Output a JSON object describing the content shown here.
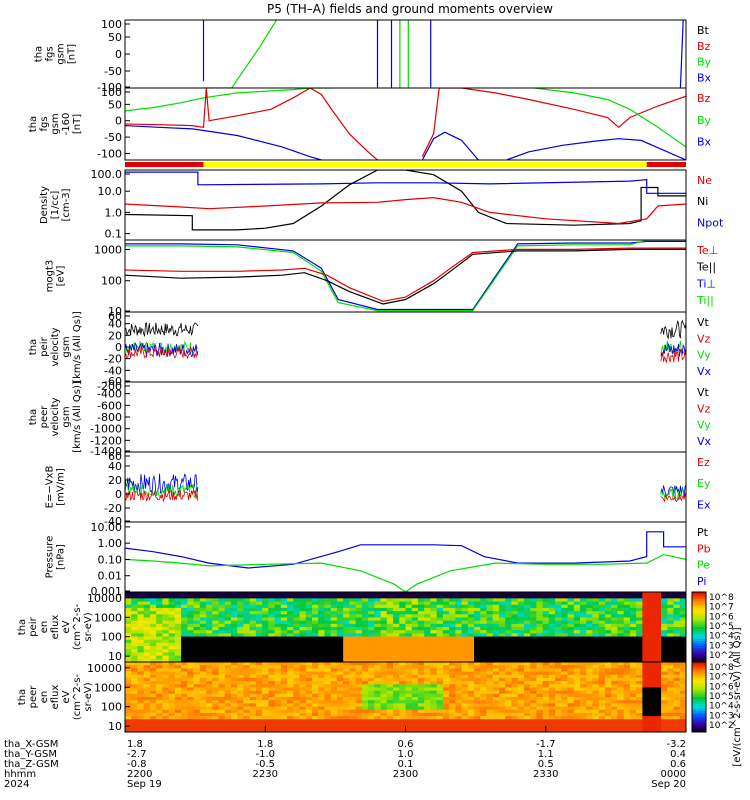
{
  "title": "P5 (TH–A) fields and ground moments overview",
  "colors": {
    "black": "#000000",
    "red": "#e00000",
    "green": "#00dd00",
    "blue": "#0000e0",
    "yellow": "#ffff00",
    "panel_bg": "#ffffff"
  },
  "chart_data": [
    {
      "type": "line",
      "ylabel_lines": [
        "tha",
        "fgs",
        "gsm",
        "[nT]"
      ],
      "ylim": [
        -100,
        100
      ],
      "yticks": [
        "100",
        "50",
        "0",
        "-50",
        "-100"
      ],
      "log": false,
      "legend": [
        {
          "text": "Bt",
          "color": "#000000"
        },
        {
          "text": "Bz",
          "color": "#e00000"
        },
        {
          "text": "By",
          "color": "#00dd00"
        },
        {
          "text": "Bx",
          "color": "#0000e0"
        }
      ],
      "series": [
        {
          "color": "#0000e0",
          "x": [
            0.14,
            0.14,
            0.14
          ],
          "y": [
            100,
            5,
            -80
          ]
        },
        {
          "color": "#00dd00",
          "x": [
            0.14,
            0.19,
            0.24,
            0.27
          ],
          "y": [
            -100,
            -100,
            20,
            100
          ]
        },
        {
          "color": "#0000e0",
          "x": [
            0.45,
            0.45
          ],
          "y": [
            100,
            -100
          ]
        },
        {
          "color": "#0000e0",
          "x": [
            0.475,
            0.475
          ],
          "y": [
            100,
            -100
          ]
        },
        {
          "color": "#00dd00",
          "x": [
            0.49,
            0.49
          ],
          "y": [
            100,
            -100
          ]
        },
        {
          "color": "#00dd00",
          "x": [
            0.505,
            0.505
          ],
          "y": [
            100,
            -100
          ]
        },
        {
          "color": "#0000e0",
          "x": [
            0.545,
            0.545
          ],
          "y": [
            100,
            -100
          ]
        },
        {
          "color": "#0000e0",
          "x": [
            0.99,
            0.995
          ],
          "y": [
            -100,
            100
          ]
        }
      ]
    },
    {
      "type": "line",
      "ylabel_lines": [
        "tha",
        "fgs",
        "gsm",
        "-160",
        "[nT]"
      ],
      "ylim": [
        -120,
        100
      ],
      "yticks": [
        "100",
        "50",
        "0",
        "-50",
        "-100"
      ],
      "log": false,
      "legend": [
        {
          "text": "Bz",
          "color": "#e00000"
        },
        {
          "text": "By",
          "color": "#00dd00"
        },
        {
          "text": "Bx",
          "color": "#0000e0"
        }
      ],
      "series": [
        {
          "color": "#00dd00",
          "x": [
            0,
            0.05,
            0.1,
            0.14,
            0.2,
            0.3,
            0.33,
            0.37
          ],
          "y": [
            30,
            40,
            55,
            70,
            85,
            95,
            100,
            100
          ]
        },
        {
          "color": "#e00000",
          "x": [
            0,
            0.06,
            0.12,
            0.14,
            0.145,
            0.15,
            0.2,
            0.26,
            0.3,
            0.33,
            0.35,
            0.37,
            0.4,
            0.43,
            0.45
          ],
          "y": [
            -10,
            -12,
            -15,
            -20,
            100,
            0,
            15,
            35,
            70,
            100,
            80,
            30,
            -40,
            -90,
            -120
          ]
        },
        {
          "color": "#0000e0",
          "x": [
            0,
            0.06,
            0.12,
            0.14,
            0.2,
            0.28,
            0.33,
            0.35
          ],
          "y": [
            -15,
            -20,
            -25,
            -30,
            -45,
            -80,
            -110,
            -120
          ]
        },
        {
          "color": "#e00000",
          "x": [
            0.53,
            0.55,
            0.56,
            0.6,
            0.66,
            0.72,
            0.8,
            0.86,
            0.88,
            0.9,
            0.95,
            1.0
          ],
          "y": [
            -110,
            -40,
            100,
            100,
            85,
            65,
            35,
            10,
            -20,
            10,
            45,
            75
          ]
        },
        {
          "color": "#0000e0",
          "x": [
            0.53,
            0.55,
            0.57,
            0.6,
            0.63
          ],
          "y": [
            -120,
            -55,
            -35,
            -60,
            -120
          ]
        },
        {
          "color": "#0000e0",
          "x": [
            0.68,
            0.72,
            0.78,
            0.84,
            0.88,
            0.92,
            0.96,
            1.0
          ],
          "y": [
            -120,
            -95,
            -75,
            -62,
            -55,
            -60,
            -90,
            -120
          ]
        },
        {
          "color": "#00dd00",
          "x": [
            0.73,
            0.8,
            0.86,
            0.9,
            0.95,
            1.0
          ],
          "y": [
            100,
            85,
            65,
            35,
            -20,
            -80
          ]
        }
      ],
      "status_bar": [
        {
          "from": 0,
          "to": 0.14,
          "color": "#e00000"
        },
        {
          "from": 0.14,
          "to": 0.93,
          "color": "#ffff00"
        },
        {
          "from": 0.93,
          "to": 1.0,
          "color": "#e00000"
        }
      ]
    },
    {
      "type": "line",
      "ylabel_lines": [
        "Density",
        "[1/cc]",
        "[cm-3]"
      ],
      "ylim": [
        0.05,
        100
      ],
      "yticks": [
        "100.0",
        "10.0",
        "1.0",
        "0.1"
      ],
      "log": true,
      "legend": [
        {
          "text": "Ne",
          "color": "#e00000"
        },
        {
          "text": "Ni",
          "color": "#000000"
        },
        {
          "text": "Npot",
          "color": "#0000e0"
        }
      ],
      "series": [
        {
          "color": "#0000e0",
          "x": [
            0,
            0.12,
            0.13,
            0.13,
            0.35,
            0.45,
            0.55,
            0.65,
            0.9,
            0.93,
            0.93,
            1.0
          ],
          "y": [
            80,
            80,
            80,
            20,
            22,
            25,
            25,
            22,
            30,
            35,
            8,
            8
          ]
        },
        {
          "color": "#000000",
          "x": [
            0,
            0.12,
            0.12,
            0.2,
            0.25,
            0.3,
            0.35,
            0.4,
            0.45,
            0.5,
            0.55,
            0.6,
            0.63,
            0.68,
            0.8,
            0.9,
            0.92,
            0.92,
            0.95,
            0.95,
            1.0
          ],
          "y": [
            0.8,
            0.7,
            0.15,
            0.15,
            0.18,
            0.3,
            2,
            20,
            100,
            100,
            60,
            10,
            1,
            0.3,
            0.25,
            0.3,
            0.4,
            15,
            15,
            6,
            6
          ]
        },
        {
          "color": "#e00000",
          "x": [
            0,
            0.1,
            0.15,
            0.25,
            0.35,
            0.45,
            0.5,
            0.55,
            0.6,
            0.65,
            0.75,
            0.88,
            0.93,
            0.95,
            1.0
          ],
          "y": [
            2.5,
            1.8,
            1.5,
            2,
            2.8,
            3,
            4,
            5,
            3,
            1,
            0.5,
            0.3,
            0.5,
            2,
            2.5
          ]
        }
      ]
    },
    {
      "type": "line",
      "ylabel_lines": [
        "mogt3",
        "[eV]"
      ],
      "ylim": [
        10,
        2000
      ],
      "yticks": [
        "1000",
        "100",
        "10"
      ],
      "log": true,
      "legend": [
        {
          "text": "Te⊥",
          "color": "#e00000"
        },
        {
          "text": "Te||",
          "color": "#000000"
        },
        {
          "text": "Ti⊥",
          "color": "#0000e0"
        },
        {
          "text": "Ti||",
          "color": "#00dd00"
        }
      ],
      "series": [
        {
          "color": "#0000e0",
          "x": [
            0,
            0.1,
            0.2,
            0.3,
            0.35,
            0.38,
            0.45,
            0.55,
            0.58,
            0.6,
            0.62,
            0.7,
            0.8,
            0.9,
            0.93,
            1.0
          ],
          "y": [
            1500,
            1500,
            1400,
            900,
            250,
            25,
            12,
            12,
            12,
            12,
            12,
            1500,
            1600,
            1600,
            1800,
            1800
          ]
        },
        {
          "color": "#00dd00",
          "x": [
            0,
            0.1,
            0.2,
            0.3,
            0.35,
            0.38,
            0.45,
            0.55,
            0.6,
            0.62,
            0.7,
            0.8,
            0.9,
            0.93,
            1.0
          ],
          "y": [
            1300,
            1300,
            1200,
            800,
            200,
            20,
            11,
            11,
            11,
            11,
            1300,
            1400,
            1400,
            2000,
            2000
          ]
        },
        {
          "color": "#e00000",
          "x": [
            0,
            0.1,
            0.2,
            0.28,
            0.32,
            0.36,
            0.4,
            0.46,
            0.5,
            0.55,
            0.58,
            0.62,
            0.7,
            0.8,
            0.9,
            1.0
          ],
          "y": [
            220,
            200,
            200,
            220,
            250,
            150,
            60,
            22,
            30,
            100,
            250,
            800,
            1000,
            1000,
            1100,
            1100
          ]
        },
        {
          "color": "#000000",
          "x": [
            0,
            0.1,
            0.2,
            0.28,
            0.32,
            0.36,
            0.4,
            0.46,
            0.5,
            0.55,
            0.58,
            0.62,
            0.7,
            0.8,
            0.9,
            1.0
          ],
          "y": [
            150,
            120,
            130,
            150,
            180,
            100,
            45,
            18,
            25,
            80,
            200,
            700,
            900,
            900,
            1000,
            1000
          ]
        }
      ]
    },
    {
      "type": "line",
      "ylabel_lines": [
        "tha",
        "peir",
        "velocity",
        "gsm",
        "[km/s (All Qs)]"
      ],
      "ylim": [
        -60,
        60
      ],
      "yticks": [
        "60",
        "40",
        "20",
        "0",
        "-20",
        "-40",
        "-60"
      ],
      "log": false,
      "legend": [
        {
          "text": "Vt",
          "color": "#000000"
        },
        {
          "text": "Vz",
          "color": "#e00000"
        },
        {
          "text": "Vy",
          "color": "#00dd00"
        },
        {
          "text": "Vx",
          "color": "#0000e0"
        }
      ],
      "noise_series": [
        {
          "color": "#000000",
          "x_from": 0,
          "x_to": 0.13,
          "y": 30,
          "amp": 12
        },
        {
          "color": "#00dd00",
          "x_from": 0,
          "x_to": 0.13,
          "y": 0,
          "amp": 10
        },
        {
          "color": "#0000e0",
          "x_from": 0,
          "x_to": 0.13,
          "y": -5,
          "amp": 12
        },
        {
          "color": "#e00000",
          "x_from": 0,
          "x_to": 0.13,
          "y": -10,
          "amp": 10
        },
        {
          "color": "#000000",
          "x_from": 0.955,
          "x_to": 1.0,
          "y": 30,
          "amp": 15
        },
        {
          "color": "#00dd00",
          "x_from": 0.955,
          "x_to": 1.0,
          "y": 0,
          "amp": 12
        },
        {
          "color": "#0000e0",
          "x_from": 0.955,
          "x_to": 1.0,
          "y": -5,
          "amp": 14
        },
        {
          "color": "#e00000",
          "x_from": 0.955,
          "x_to": 1.0,
          "y": -15,
          "amp": 12
        }
      ]
    },
    {
      "type": "line",
      "ylabel_lines": [
        "tha",
        "peer",
        "velocity",
        "gsm",
        "[km/s (All Qs)]"
      ],
      "ylim": [
        -1400,
        -200
      ],
      "yticks": [
        "-200",
        "-400",
        "-600",
        "-800",
        "-1000",
        "-1200",
        "-1400"
      ],
      "log": false,
      "legend": [
        {
          "text": "Vt",
          "color": "#000000"
        },
        {
          "text": "Vz",
          "color": "#e00000"
        },
        {
          "text": "Vy",
          "color": "#00dd00"
        },
        {
          "text": "Vx",
          "color": "#0000e0"
        }
      ],
      "series": []
    },
    {
      "type": "line",
      "ylabel_lines": [
        "E=−VxB",
        "[mV/m]"
      ],
      "ylim": [
        -40,
        60
      ],
      "yticks": [
        "60",
        "40",
        "20",
        "0",
        "-20",
        "-40"
      ],
      "log": false,
      "legend": [
        {
          "text": "Ez",
          "color": "#e00000"
        },
        {
          "text": "Ey",
          "color": "#00dd00"
        },
        {
          "text": "Ex",
          "color": "#0000e0"
        }
      ],
      "noise_series": [
        {
          "color": "#0000e0",
          "x_from": 0,
          "x_to": 0.13,
          "y": 15,
          "amp": 14
        },
        {
          "color": "#00dd00",
          "x_from": 0,
          "x_to": 0.13,
          "y": 5,
          "amp": 10
        },
        {
          "color": "#e00000",
          "x_from": 0,
          "x_to": 0.13,
          "y": -2,
          "amp": 8
        },
        {
          "color": "#0000e0",
          "x_from": 0.955,
          "x_to": 1.0,
          "y": 5,
          "amp": 10
        },
        {
          "color": "#00dd00",
          "x_from": 0.955,
          "x_to": 1.0,
          "y": 0,
          "amp": 8
        },
        {
          "color": "#e00000",
          "x_from": 0.955,
          "x_to": 1.0,
          "y": -5,
          "amp": 6
        }
      ]
    },
    {
      "type": "line",
      "ylabel_lines": [
        "Pressure",
        "[nPa]"
      ],
      "ylim": [
        0.001,
        20
      ],
      "yticks": [
        "10.00",
        "1.00",
        "0.10",
        "0.01",
        "0.001"
      ],
      "log": true,
      "legend": [
        {
          "text": "Pt",
          "color": "#000000"
        },
        {
          "text": "Pb",
          "color": "#e00000"
        },
        {
          "text": "Pe",
          "color": "#00dd00"
        },
        {
          "text": "Pi",
          "color": "#0000e0"
        }
      ],
      "series": [
        {
          "color": "#0000e0",
          "x": [
            0,
            0.05,
            0.1,
            0.15,
            0.22,
            0.3,
            0.38,
            0.42,
            0.5,
            0.55,
            0.6,
            0.64,
            0.7,
            0.8,
            0.9,
            0.93,
            0.93,
            0.96,
            0.96,
            1.0
          ],
          "y": [
            0.5,
            0.3,
            0.15,
            0.06,
            0.03,
            0.05,
            0.3,
            0.8,
            0.8,
            0.8,
            0.7,
            0.15,
            0.06,
            0.06,
            0.08,
            0.15,
            5,
            5,
            0.6,
            0.6
          ]
        },
        {
          "color": "#00dd00",
          "x": [
            0,
            0.05,
            0.1,
            0.15,
            0.25,
            0.35,
            0.42,
            0.48,
            0.5,
            0.52,
            0.58,
            0.66,
            0.75,
            0.85,
            0.93,
            0.96,
            1.0
          ],
          "y": [
            0.1,
            0.08,
            0.06,
            0.04,
            0.05,
            0.06,
            0.02,
            0.003,
            0.001,
            0.003,
            0.02,
            0.06,
            0.05,
            0.05,
            0.06,
            0.2,
            0.1
          ]
        }
      ]
    },
    {
      "type": "heatmap",
      "ylabel_lines": [
        "tha",
        "peir",
        "en",
        "eflux",
        "eV",
        "(cm^2-s-",
        "sr-eV)"
      ],
      "ylim": [
        5,
        20000
      ],
      "yticks": [
        "10000",
        "1000",
        "100",
        "10"
      ],
      "log": true,
      "colorbar_ticks": [
        "10^8",
        "10^7",
        "10^6",
        "10^5",
        "10^4",
        "10^3",
        "10^2"
      ]
    },
    {
      "type": "heatmap",
      "ylabel_lines": [
        "tha",
        "peer",
        "en",
        "eflux",
        "eV",
        "(cm^2-s-",
        "sr-eV)"
      ],
      "ylim": [
        5,
        20000
      ],
      "yticks": [
        "10000",
        "1000",
        "100",
        "10"
      ],
      "log": true,
      "colorbar_ticks": [
        "10^8",
        "10^7",
        "10^6",
        "10^5",
        "10^4",
        "10^3",
        "10^2"
      ],
      "colorbar_label": "[eV/(cm^2-s-sr-eV) (All Qs)]"
    }
  ],
  "footer": {
    "row_labels": [
      "tha_X-GSM",
      "tha_Y-GSM",
      "tha_Z-GSM",
      "hhmm",
      "2024"
    ],
    "columns": [
      {
        "values": [
          "1.8",
          "-2.7",
          "-0.8",
          "2200",
          "Sep 19"
        ]
      },
      {
        "values": [
          "1.8",
          "-1.0",
          "-0.5",
          "2230",
          ""
        ]
      },
      {
        "values": [
          "0.6",
          "1.0",
          "0.1",
          "2300",
          ""
        ]
      },
      {
        "values": [
          "-1.7",
          "1.1",
          "0.5",
          "2330",
          ""
        ]
      },
      {
        "values": [
          "-3.2",
          "0.4",
          "0.6",
          "0000",
          "Sep 20"
        ]
      }
    ]
  }
}
